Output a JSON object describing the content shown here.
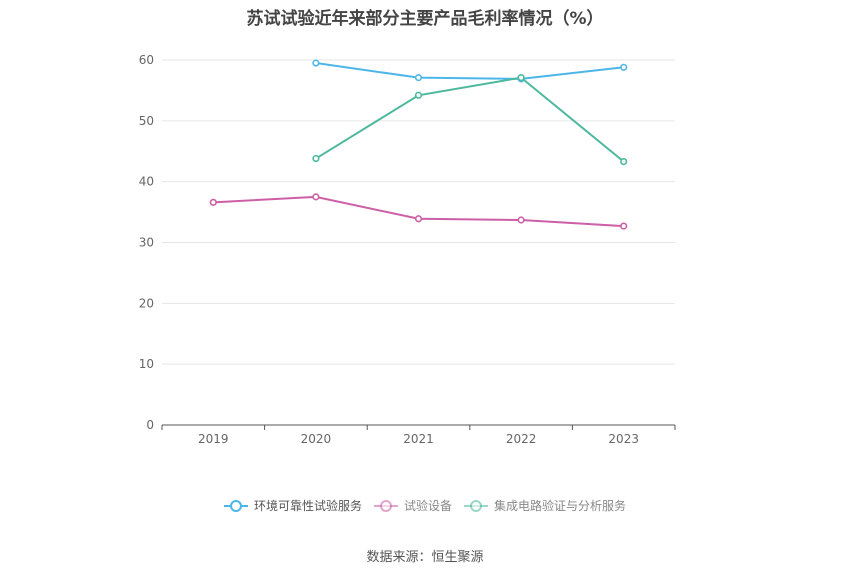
{
  "chart_data": {
    "type": "line",
    "title": "苏试试验近年来部分主要产品毛利率情况（%）",
    "xlabel": "",
    "ylabel": "",
    "categories": [
      "2019",
      "2020",
      "2021",
      "2022",
      "2023"
    ],
    "ylim": [
      0,
      60
    ],
    "yticks": [
      0,
      10,
      20,
      30,
      40,
      50,
      60
    ],
    "grid": true,
    "legend_position": "bottom",
    "series": [
      {
        "name": "环境可靠性试验服务",
        "color": "#4db6e8",
        "values": [
          null,
          59.5,
          57.1,
          56.9,
          58.8
        ]
      },
      {
        "name": "试验设备",
        "color": "#cc5fa6",
        "values": [
          36.6,
          37.5,
          33.9,
          33.7,
          32.7
        ]
      },
      {
        "name": "集成电路验证与分析服务",
        "color": "#4db89e",
        "values": [
          null,
          43.8,
          54.2,
          57.1,
          43.3
        ]
      }
    ]
  },
  "source": "数据来源：恒生聚源"
}
